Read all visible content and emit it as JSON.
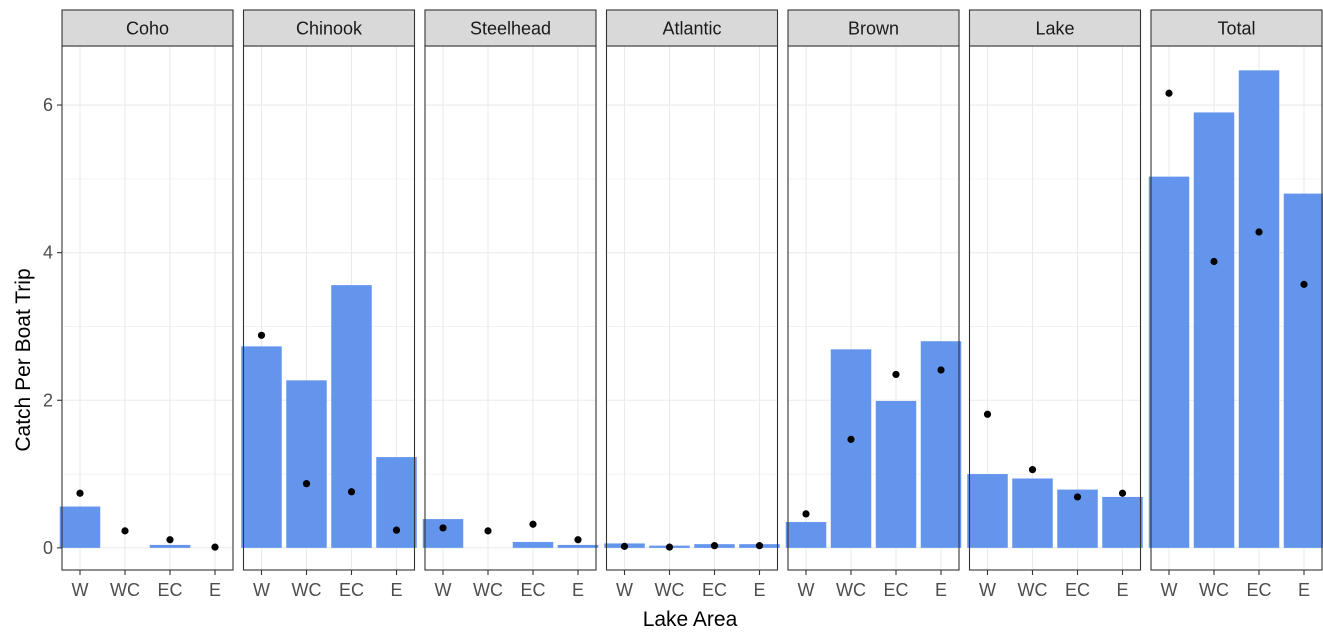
{
  "chart_data": {
    "type": "bar",
    "layout": "facet",
    "xlabel": "Lake Area",
    "ylabel": "Catch Per Boat Trip",
    "categories": [
      "W",
      "WC",
      "EC",
      "E"
    ],
    "ylim": [
      -0.3,
      6.8
    ],
    "yticks": [
      0,
      2,
      4,
      6
    ],
    "grid": true,
    "colors": {
      "bar": "#6495ED",
      "point": "#000000",
      "strip": "#D9D9D9"
    },
    "panels": [
      {
        "name": "Coho",
        "bars": [
          0.56,
          0.0,
          0.04,
          0.0
        ],
        "points": [
          0.74,
          0.23,
          0.11,
          0.01
        ]
      },
      {
        "name": "Chinook",
        "bars": [
          2.73,
          2.27,
          3.56,
          1.23
        ],
        "points": [
          2.88,
          0.87,
          0.76,
          0.24
        ]
      },
      {
        "name": "Steelhead",
        "bars": [
          0.39,
          0.0,
          0.08,
          0.04
        ],
        "points": [
          0.27,
          0.23,
          0.32,
          0.11
        ]
      },
      {
        "name": "Atlantic",
        "bars": [
          0.06,
          0.03,
          0.05,
          0.05
        ],
        "points": [
          0.02,
          0.01,
          0.03,
          0.03
        ]
      },
      {
        "name": "Brown",
        "bars": [
          0.35,
          2.69,
          1.99,
          2.8
        ],
        "points": [
          0.46,
          1.47,
          2.35,
          2.41
        ]
      },
      {
        "name": "Lake",
        "bars": [
          1.0,
          0.94,
          0.79,
          0.69
        ],
        "points": [
          1.81,
          1.06,
          0.69,
          0.74
        ]
      },
      {
        "name": "Total",
        "bars": [
          5.03,
          5.9,
          6.47,
          4.8
        ],
        "points": [
          6.16,
          3.88,
          4.28,
          3.57
        ]
      }
    ]
  }
}
